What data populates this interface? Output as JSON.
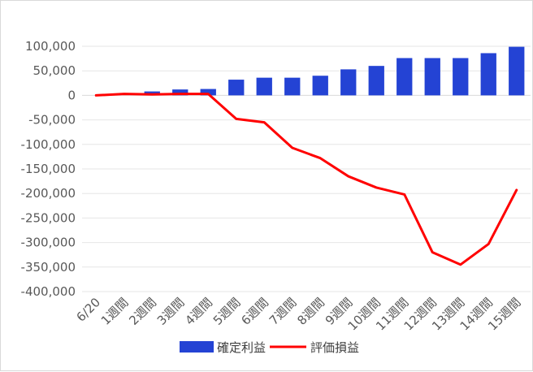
{
  "chart_data": {
    "type": "bar+line",
    "title": "",
    "xlabel": "",
    "ylabel": "",
    "ylim": [
      -400000,
      100000
    ],
    "y_ticks": [
      100000,
      50000,
      0,
      -50000,
      -100000,
      -150000,
      -200000,
      -250000,
      -300000,
      -350000,
      -400000
    ],
    "y_tick_labels": [
      "100,000",
      "50,000",
      "0",
      "-50,000",
      "-100,000",
      "-150,000",
      "-200,000",
      "-250,000",
      "-300,000",
      "-350,000",
      "-400,000"
    ],
    "grid": true,
    "legend_position": "bottom",
    "categories": [
      "6/20",
      "1週間",
      "2週間",
      "3週間",
      "4週間",
      "5週間",
      "6週間",
      "7週間",
      "8週間",
      "9週間",
      "10週間",
      "11週間",
      "12週間",
      "13週間",
      "14週間",
      "15週間"
    ],
    "series": [
      {
        "name": "確定利益",
        "type": "bar",
        "color": "#2443d4",
        "values": [
          0,
          0,
          8000,
          12000,
          13000,
          32000,
          36000,
          36000,
          40000,
          53000,
          60000,
          76000,
          76000,
          76000,
          86000,
          99000
        ]
      },
      {
        "name": "評価損益",
        "type": "line",
        "color": "#ff0000",
        "values": [
          0,
          3000,
          2000,
          3000,
          3000,
          -48000,
          -55000,
          -107000,
          -128000,
          -165000,
          -188000,
          -202000,
          -320000,
          -345000,
          -303000,
          -193000
        ]
      }
    ]
  }
}
